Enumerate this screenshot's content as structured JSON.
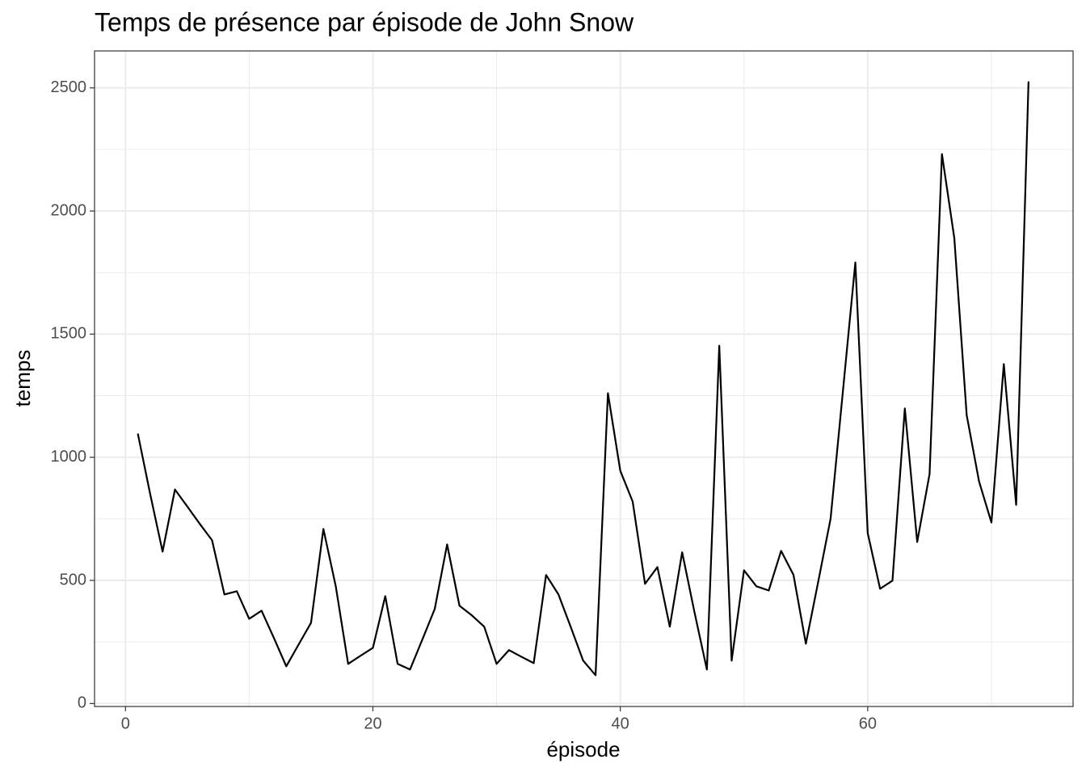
{
  "chart_data": {
    "type": "line",
    "title": "Temps de présence par épisode de John Snow",
    "x_label": "épisode",
    "y_label": "temps",
    "x": [
      1,
      2,
      3,
      4,
      5,
      6,
      7,
      8,
      9,
      10,
      11,
      12,
      13,
      14,
      15,
      16,
      17,
      18,
      19,
      20,
      21,
      22,
      23,
      24,
      25,
      26,
      27,
      28,
      29,
      30,
      31,
      32,
      33,
      34,
      35,
      36,
      37,
      38,
      39,
      40,
      41,
      42,
      43,
      44,
      45,
      46,
      47,
      48,
      49,
      50,
      51,
      52,
      53,
      54,
      55,
      56,
      57,
      58,
      59,
      60,
      61,
      62,
      63,
      64,
      65,
      66,
      67,
      68,
      69,
      70,
      71,
      72,
      73
    ],
    "values": [
      1096,
      850,
      617,
      869,
      800,
      730,
      663,
      443,
      456,
      344,
      377,
      266,
      151,
      240,
      328,
      709,
      476,
      161,
      194,
      226,
      436,
      161,
      138,
      260,
      384,
      646,
      397,
      358,
      312,
      161,
      217,
      190,
      164,
      522,
      443,
      310,
      174,
      115,
      1260,
      945,
      820,
      486,
      554,
      312,
      614,
      370,
      138,
      1453,
      174,
      541,
      476,
      459,
      620,
      522,
      243,
      495,
      751,
      1271,
      1791,
      692,
      466,
      499,
      1198,
      656,
      932,
      2231,
      1890,
      1171,
      902,
      735,
      1378,
      807,
      2526
    ],
    "color": "#000000",
    "xlim": [
      -2.5,
      76.6
    ],
    "ylim": [
      -12,
      2650
    ],
    "xticks": [
      0,
      20,
      40,
      60
    ],
    "yticks": [
      0,
      500,
      1000,
      1500,
      2000,
      2500
    ],
    "grid": true
  }
}
